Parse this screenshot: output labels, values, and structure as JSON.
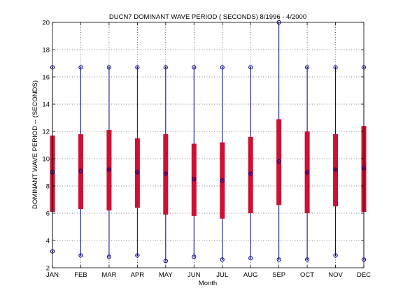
{
  "chart_data": {
    "type": "box",
    "title": "DUCN7  DOMINANT WAVE PERIOD ( SECONDS) 8/1996 - 4/2000",
    "xlabel": "Month",
    "ylabel": "DOMINANT WAVE PERIOD  --  (SECONDS)",
    "ylim": [
      2,
      20
    ],
    "yticks": [
      2,
      4,
      6,
      8,
      10,
      12,
      14,
      16,
      18,
      20
    ],
    "grid": true,
    "categories": [
      "JAN",
      "FEB",
      "MAR",
      "APR",
      "MAY",
      "JUN",
      "JUL",
      "AUG",
      "SEP",
      "OCT",
      "NOV",
      "DEC"
    ],
    "series": [
      {
        "stat": "min",
        "values": [
          3.2,
          2.9,
          2.8,
          2.9,
          2.5,
          2.8,
          2.6,
          2.7,
          2.6,
          2.6,
          2.9,
          2.6
        ]
      },
      {
        "stat": "max",
        "values": [
          16.7,
          16.7,
          16.7,
          16.7,
          16.7,
          16.7,
          16.7,
          16.7,
          20.0,
          16.7,
          16.7,
          16.7
        ]
      },
      {
        "stat": "mean",
        "values": [
          9.0,
          9.1,
          9.2,
          9.0,
          8.9,
          8.5,
          8.4,
          8.9,
          9.8,
          9.0,
          9.2,
          9.3
        ]
      },
      {
        "stat": "box_low",
        "values": [
          6.1,
          6.3,
          6.2,
          6.4,
          5.9,
          5.8,
          5.6,
          6.0,
          6.6,
          6.0,
          6.5,
          6.1
        ]
      },
      {
        "stat": "box_high",
        "values": [
          11.7,
          11.8,
          12.1,
          11.5,
          11.8,
          11.1,
          11.2,
          11.6,
          12.9,
          12.0,
          11.8,
          12.4
        ]
      }
    ],
    "colors": {
      "whisker": "#00008b",
      "box": "#cc1133",
      "marker": "#00008b",
      "grid": "#000000"
    }
  }
}
